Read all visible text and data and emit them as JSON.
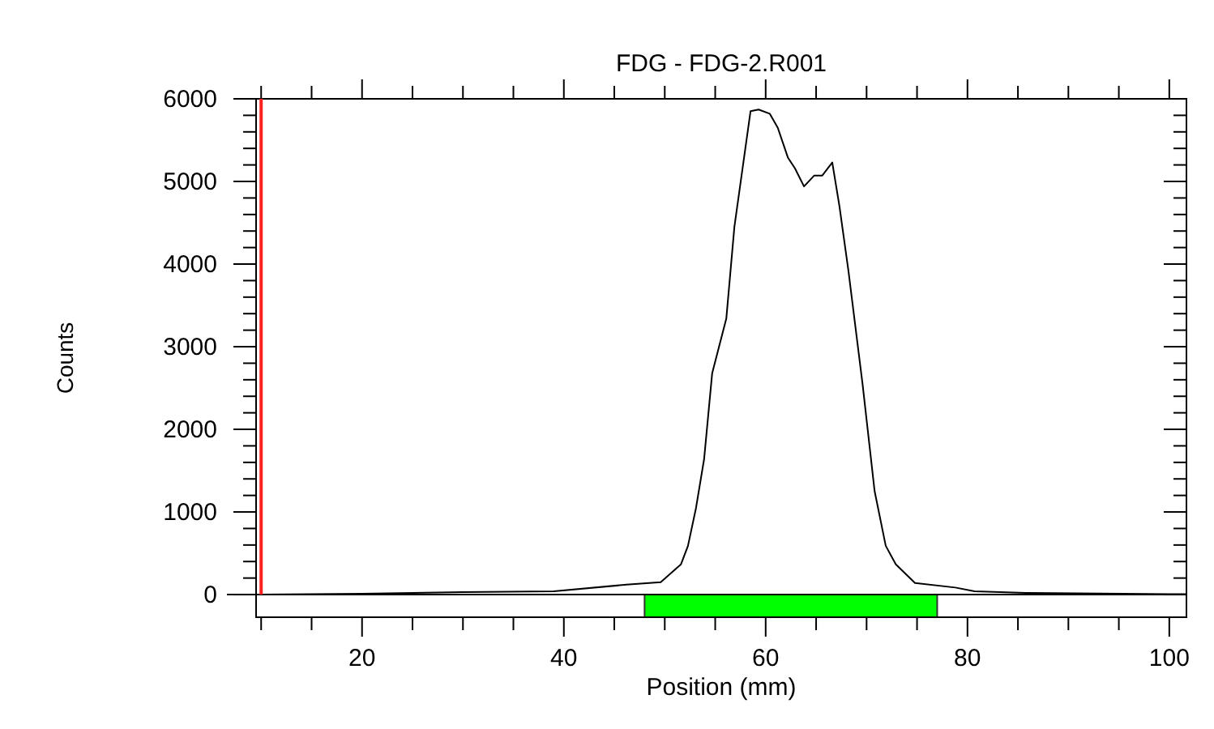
{
  "chart_data": {
    "type": "line",
    "title": "FDG - FDG-2.R001",
    "xlabel": "Position (mm)",
    "ylabel": "Counts",
    "xlim": [
      9.5,
      101.7
    ],
    "ylim": [
      -274,
      6000
    ],
    "xticks": [
      {
        "value": 10,
        "label": null
      },
      {
        "value": 15,
        "label": null
      },
      20,
      {
        "value": 25,
        "label": null
      },
      {
        "value": 30,
        "label": null
      },
      {
        "value": 35,
        "label": null
      },
      40,
      {
        "value": 45,
        "label": null
      },
      {
        "value": 50,
        "label": null
      },
      {
        "value": 55,
        "label": null
      },
      60,
      {
        "value": 65,
        "label": null
      },
      {
        "value": 70,
        "label": null
      },
      {
        "value": 75,
        "label": null
      },
      80,
      {
        "value": 85,
        "label": null
      },
      {
        "value": 90,
        "label": null
      },
      {
        "value": 95,
        "label": null
      },
      100
    ],
    "yticks": [
      0,
      {
        "value": 200,
        "label": null
      },
      {
        "value": 400,
        "label": null
      },
      {
        "value": 600,
        "label": null
      },
      {
        "value": 800,
        "label": null
      },
      1000,
      {
        "value": 1200,
        "label": null
      },
      {
        "value": 1400,
        "label": null
      },
      {
        "value": 1600,
        "label": null
      },
      {
        "value": 1800,
        "label": null
      },
      2000,
      {
        "value": 2200,
        "label": null
      },
      {
        "value": 2400,
        "label": null
      },
      {
        "value": 2600,
        "label": null
      },
      {
        "value": 2800,
        "label": null
      },
      3000,
      {
        "value": 3200,
        "label": null
      },
      {
        "value": 3400,
        "label": null
      },
      {
        "value": 3600,
        "label": null
      },
      {
        "value": 3800,
        "label": null
      },
      4000,
      {
        "value": 4200,
        "label": null
      },
      {
        "value": 4400,
        "label": null
      },
      {
        "value": 4600,
        "label": null
      },
      {
        "value": 4800,
        "label": null
      },
      5000,
      {
        "value": 5200,
        "label": null
      },
      {
        "value": 5400,
        "label": null
      },
      {
        "value": 5600,
        "label": null
      },
      {
        "value": 5800,
        "label": null
      },
      6000
    ],
    "grid": false,
    "marker": "none",
    "line_style": "solid",
    "series": [
      {
        "color": "#000000",
        "x": [
          10,
          20,
          30,
          39,
          46.2,
          49.6,
          51.6,
          52.3,
          53.1,
          53.9,
          54.7,
          56.1,
          56.9,
          58.5,
          59.3,
          60.4,
          61.2,
          62.2,
          62.9,
          63.8,
          64.8,
          65.6,
          66.6,
          67.3,
          68.2,
          69.6,
          70.8,
          71.9,
          72.9,
          74.8,
          78.8,
          80.7,
          85.8,
          100,
          101.7
        ],
        "values": [
          0,
          10,
          30,
          40,
          120,
          150,
          365,
          590,
          1050,
          1640,
          2680,
          3340,
          4450,
          5850,
          5870,
          5820,
          5650,
          5290,
          5160,
          4940,
          5070,
          5070,
          5230,
          4710,
          3920,
          2550,
          1250,
          590,
          365,
          140,
          85,
          40,
          20,
          5,
          5
        ]
      }
    ],
    "ref_lines": [
      {
        "axis": "x",
        "value": 10,
        "color": "#ff2020"
      }
    ],
    "bands": [
      {
        "axis": "x",
        "from": 48,
        "to": 77,
        "color": "#00ff00"
      }
    ]
  }
}
